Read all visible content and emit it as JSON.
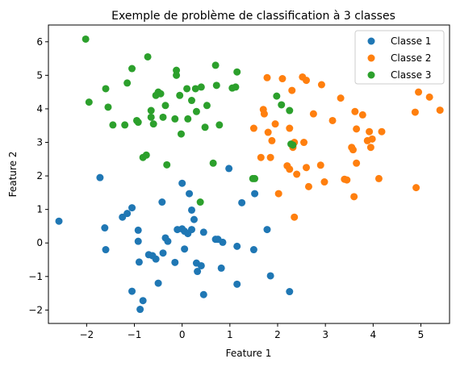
{
  "chart_data": {
    "type": "scatter",
    "title": "Exemple de problème de classification à 3 classes",
    "xlabel": "Feature 1",
    "ylabel": "Feature 2",
    "xlim": [
      -2.8,
      5.6
    ],
    "ylim": [
      -2.4,
      6.5
    ],
    "xticks": [
      -2,
      -1,
      0,
      1,
      2,
      3,
      4,
      5
    ],
    "yticks": [
      -2,
      -1,
      0,
      1,
      2,
      3,
      4,
      5,
      6
    ],
    "grid": false,
    "legend_position": "top-right",
    "series": [
      {
        "name": "Classe 1",
        "color": "#1f77b4",
        "points": [
          [
            -2.58,
            0.65
          ],
          [
            -1.72,
            1.95
          ],
          [
            -1.62,
            0.45
          ],
          [
            -1.6,
            -0.2
          ],
          [
            -1.25,
            0.77
          ],
          [
            -1.15,
            0.88
          ],
          [
            -1.05,
            1.05
          ],
          [
            -1.05,
            -1.44
          ],
          [
            -0.92,
            0.38
          ],
          [
            -0.92,
            0.05
          ],
          [
            -0.9,
            -0.57
          ],
          [
            -0.82,
            -1.72
          ],
          [
            -0.88,
            -1.98
          ],
          [
            -0.7,
            -0.35
          ],
          [
            -0.62,
            -0.38
          ],
          [
            -0.55,
            -0.48
          ],
          [
            -0.5,
            -1.2
          ],
          [
            -0.42,
            1.22
          ],
          [
            -0.4,
            -0.3
          ],
          [
            -0.35,
            0.15
          ],
          [
            -0.3,
            0.05
          ],
          [
            -0.15,
            -0.58
          ],
          [
            -0.1,
            0.4
          ],
          [
            0.0,
            0.42
          ],
          [
            0.0,
            1.78
          ],
          [
            0.05,
            0.35
          ],
          [
            0.05,
            -0.18
          ],
          [
            0.12,
            0.28
          ],
          [
            0.15,
            1.47
          ],
          [
            0.2,
            0.4
          ],
          [
            0.2,
            0.98
          ],
          [
            0.25,
            0.7
          ],
          [
            0.3,
            -0.6
          ],
          [
            0.32,
            -0.85
          ],
          [
            0.45,
            0.32
          ],
          [
            0.45,
            -1.54
          ],
          [
            0.4,
            -0.68
          ],
          [
            0.7,
            0.11
          ],
          [
            0.75,
            0.11
          ],
          [
            0.82,
            -0.75
          ],
          [
            0.85,
            0.02
          ],
          [
            0.98,
            2.22
          ],
          [
            1.15,
            -0.1
          ],
          [
            1.15,
            -1.23
          ],
          [
            1.25,
            1.2
          ],
          [
            1.5,
            -0.2
          ],
          [
            1.52,
            1.47
          ],
          [
            1.78,
            0.4
          ],
          [
            1.85,
            -0.98
          ],
          [
            2.25,
            -1.45
          ]
        ]
      },
      {
        "name": "Classe 2",
        "color": "#ff7f0e",
        "points": [
          [
            1.5,
            3.42
          ],
          [
            1.65,
            2.55
          ],
          [
            1.7,
            3.98
          ],
          [
            1.72,
            3.85
          ],
          [
            1.78,
            4.93
          ],
          [
            1.8,
            3.3
          ],
          [
            1.85,
            2.55
          ],
          [
            1.88,
            3.05
          ],
          [
            1.95,
            3.55
          ],
          [
            2.02,
            1.47
          ],
          [
            2.1,
            4.9
          ],
          [
            2.2,
            2.3
          ],
          [
            2.25,
            2.2
          ],
          [
            2.25,
            3.42
          ],
          [
            2.3,
            4.55
          ],
          [
            2.32,
            2.85
          ],
          [
            2.35,
            3.0
          ],
          [
            2.35,
            0.77
          ],
          [
            2.4,
            2.05
          ],
          [
            2.52,
            4.95
          ],
          [
            2.55,
            3.0
          ],
          [
            2.6,
            2.25
          ],
          [
            2.6,
            4.85
          ],
          [
            2.65,
            1.68
          ],
          [
            2.75,
            3.85
          ],
          [
            2.9,
            2.32
          ],
          [
            2.92,
            4.72
          ],
          [
            2.98,
            1.82
          ],
          [
            3.15,
            3.65
          ],
          [
            3.32,
            4.32
          ],
          [
            3.4,
            1.9
          ],
          [
            3.45,
            1.88
          ],
          [
            3.55,
            2.85
          ],
          [
            3.58,
            2.78
          ],
          [
            3.6,
            1.38
          ],
          [
            3.62,
            3.92
          ],
          [
            3.65,
            3.4
          ],
          [
            3.65,
            2.38
          ],
          [
            3.78,
            3.82
          ],
          [
            3.88,
            3.05
          ],
          [
            3.92,
            3.32
          ],
          [
            3.95,
            2.85
          ],
          [
            3.98,
            3.1
          ],
          [
            4.12,
            1.92
          ],
          [
            4.18,
            3.32
          ],
          [
            4.88,
            3.9
          ],
          [
            4.9,
            1.65
          ],
          [
            4.95,
            4.5
          ],
          [
            5.18,
            4.35
          ],
          [
            5.4,
            3.96
          ]
        ]
      },
      {
        "name": "Classe 3",
        "color": "#2ca02c",
        "points": [
          [
            -2.02,
            6.08
          ],
          [
            -1.95,
            4.2
          ],
          [
            -1.6,
            4.6
          ],
          [
            -1.55,
            4.05
          ],
          [
            -1.45,
            3.52
          ],
          [
            -1.2,
            3.52
          ],
          [
            -1.15,
            4.77
          ],
          [
            -1.05,
            5.2
          ],
          [
            -0.95,
            3.65
          ],
          [
            -0.92,
            3.6
          ],
          [
            -0.82,
            2.55
          ],
          [
            -0.75,
            2.62
          ],
          [
            -0.72,
            5.55
          ],
          [
            -0.65,
            3.95
          ],
          [
            -0.65,
            3.75
          ],
          [
            -0.6,
            3.55
          ],
          [
            -0.55,
            4.4
          ],
          [
            -0.5,
            4.5
          ],
          [
            -0.45,
            4.45
          ],
          [
            -0.4,
            3.75
          ],
          [
            -0.35,
            4.1
          ],
          [
            -0.32,
            2.33
          ],
          [
            -0.15,
            3.7
          ],
          [
            -0.12,
            5.15
          ],
          [
            -0.12,
            5.0
          ],
          [
            -0.05,
            4.4
          ],
          [
            -0.02,
            3.25
          ],
          [
            0.1,
            4.6
          ],
          [
            0.12,
            3.7
          ],
          [
            0.2,
            4.25
          ],
          [
            0.28,
            4.6
          ],
          [
            0.3,
            3.92
          ],
          [
            0.38,
            1.22
          ],
          [
            0.4,
            4.65
          ],
          [
            0.48,
            3.45
          ],
          [
            0.52,
            4.1
          ],
          [
            0.65,
            2.38
          ],
          [
            0.7,
            5.3
          ],
          [
            0.72,
            4.7
          ],
          [
            0.78,
            3.52
          ],
          [
            1.05,
            4.62
          ],
          [
            1.12,
            4.65
          ],
          [
            1.15,
            5.1
          ],
          [
            1.48,
            1.92
          ],
          [
            1.52,
            1.92
          ],
          [
            1.98,
            4.38
          ],
          [
            2.08,
            4.12
          ],
          [
            2.25,
            3.95
          ],
          [
            2.28,
            2.95
          ],
          [
            2.32,
            2.92
          ]
        ]
      }
    ]
  }
}
